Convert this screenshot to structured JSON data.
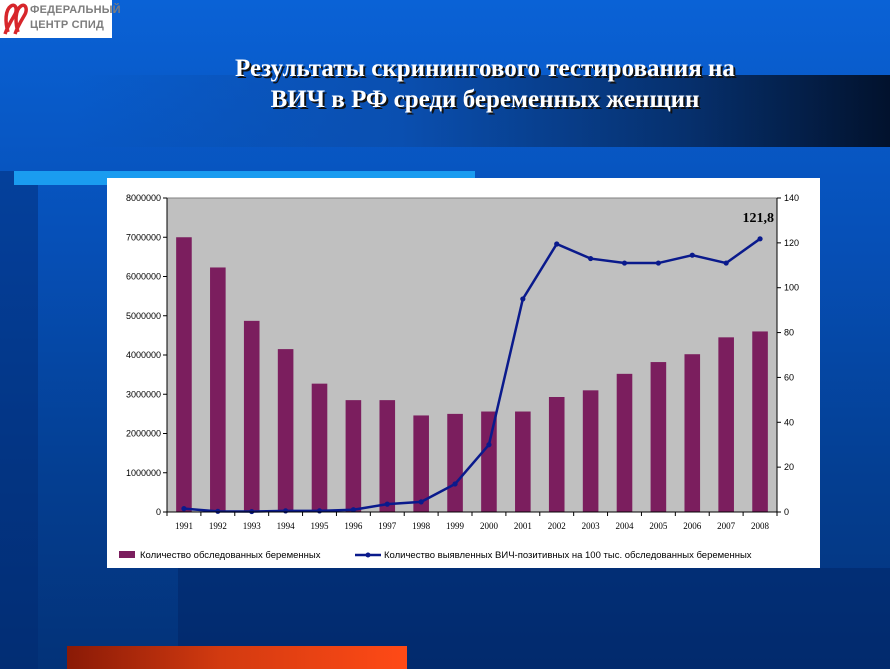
{
  "logo": {
    "line1": "ФЕДЕРАЛЬНЫЙ",
    "line2": "ЦЕНТР СПИД"
  },
  "title": {
    "line1": "Результаты скринингового тестирования на",
    "line2": "ВИЧ в РФ среди беременных женщин"
  },
  "colors": {
    "bars": "#7b1e5e",
    "line": "#0a1a8c",
    "plot_bg": "#c0c0c0"
  },
  "chart_data": {
    "type": "bar",
    "categories": [
      "1991",
      "1992",
      "1993",
      "1994",
      "1995",
      "1996",
      "1997",
      "1998",
      "1999",
      "2000",
      "2001",
      "2002",
      "2003",
      "2004",
      "2005",
      "2006",
      "2007",
      "2008"
    ],
    "y_left": {
      "ylim": [
        0,
        8000000
      ],
      "ticks": [
        "0",
        "1000000",
        "2000000",
        "3000000",
        "4000000",
        "5000000",
        "6000000",
        "7000000",
        "8000000"
      ]
    },
    "y_right": {
      "ylim": [
        0,
        140
      ],
      "ticks": [
        "0",
        "20",
        "40",
        "60",
        "80",
        "100",
        "120",
        "140"
      ]
    },
    "series": [
      {
        "name": "Количество обследованных беременных",
        "type": "bar",
        "axis": "left",
        "values": [
          7000000,
          6230000,
          4870000,
          4150000,
          3270000,
          2850000,
          2850000,
          2460000,
          2500000,
          2560000,
          2560000,
          2930000,
          3100000,
          3520000,
          3820000,
          4020000,
          4450000,
          4600000
        ]
      },
      {
        "name": "Количество выявленных ВИЧ-позитивных на 100 тыс. обследованных беременных",
        "type": "line",
        "axis": "right",
        "values": [
          1.5,
          0.3,
          0.2,
          0.5,
          0.5,
          1.0,
          3.5,
          4.5,
          12.5,
          30.0,
          95.0,
          119.5,
          113.0,
          111.0,
          111.0,
          114.5,
          111.0,
          121.8
        ]
      }
    ],
    "annotation": {
      "text": "121,8"
    },
    "grid": false,
    "legend_position": "bottom"
  }
}
